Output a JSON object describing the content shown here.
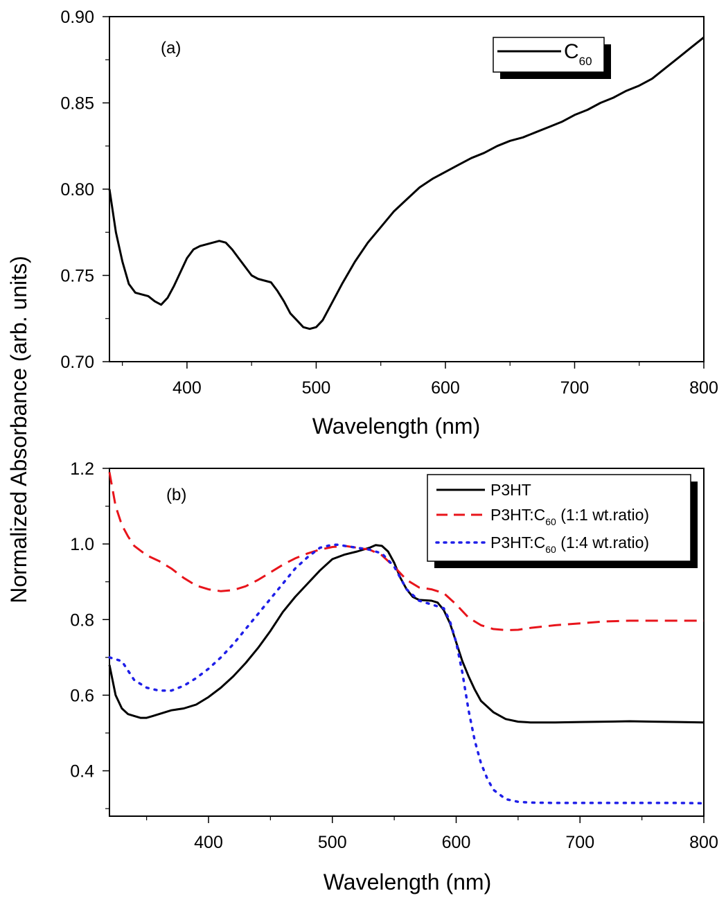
{
  "ylabel": "Normalized Absorbance (arb. units)",
  "colors": {
    "black": "#000000",
    "red": "#e8141b",
    "blue": "#1f1fe8"
  },
  "chart_data": [
    {
      "type": "line",
      "panel_label": "(a)",
      "xlabel": "Wavelength (nm)",
      "ylabel": "Normalized Absorbance (arb. units)",
      "xlim": [
        340,
        800
      ],
      "ylim": [
        0.7,
        0.9
      ],
      "xticks": [
        400,
        500,
        600,
        700,
        800
      ],
      "yticks": [
        0.7,
        0.75,
        0.8,
        0.85,
        0.9
      ],
      "xtick_labels": [
        "400",
        "500",
        "600",
        "700",
        "800"
      ],
      "ytick_labels": [
        "0.70",
        "0.75",
        "0.80",
        "0.85",
        "0.90"
      ],
      "legend": {
        "position": "top-right",
        "entries": [
          {
            "main": "C",
            "sub": "60"
          }
        ]
      },
      "series": [
        {
          "name": "C60",
          "color": "#000000",
          "dash": "solid",
          "x": [
            340,
            345,
            350,
            355,
            360,
            365,
            370,
            375,
            380,
            385,
            390,
            395,
            400,
            405,
            410,
            415,
            420,
            425,
            430,
            435,
            440,
            445,
            450,
            455,
            460,
            465,
            470,
            475,
            480,
            485,
            490,
            495,
            500,
            505,
            510,
            520,
            530,
            540,
            550,
            560,
            570,
            580,
            590,
            600,
            610,
            620,
            630,
            640,
            650,
            660,
            670,
            680,
            690,
            700,
            710,
            720,
            730,
            740,
            750,
            760,
            770,
            780,
            790,
            800
          ],
          "y": [
            0.8,
            0.775,
            0.758,
            0.745,
            0.74,
            0.739,
            0.738,
            0.735,
            0.733,
            0.737,
            0.744,
            0.752,
            0.76,
            0.765,
            0.767,
            0.768,
            0.769,
            0.77,
            0.769,
            0.765,
            0.76,
            0.755,
            0.75,
            0.748,
            0.747,
            0.746,
            0.741,
            0.735,
            0.728,
            0.724,
            0.72,
            0.719,
            0.72,
            0.724,
            0.731,
            0.745,
            0.758,
            0.769,
            0.778,
            0.787,
            0.794,
            0.801,
            0.806,
            0.81,
            0.814,
            0.818,
            0.821,
            0.825,
            0.828,
            0.83,
            0.833,
            0.836,
            0.839,
            0.843,
            0.846,
            0.85,
            0.853,
            0.857,
            0.86,
            0.864,
            0.87,
            0.876,
            0.882,
            0.888
          ]
        }
      ]
    },
    {
      "type": "line",
      "panel_label": "(b)",
      "xlabel": "Wavelength (nm)",
      "ylabel": "Normalized Absorbance (arb. units)",
      "xlim": [
        320,
        800
      ],
      "ylim": [
        0.28,
        1.2
      ],
      "xticks": [
        400,
        500,
        600,
        700,
        800
      ],
      "yticks": [
        0.4,
        0.6,
        0.8,
        1.0,
        1.2
      ],
      "xtick_labels": [
        "400",
        "500",
        "600",
        "700",
        "800"
      ],
      "ytick_labels": [
        "0.4",
        "0.6",
        "0.8",
        "1.0",
        "1.2"
      ],
      "legend": {
        "position": "top-right",
        "entries": [
          {
            "main": "P3HT",
            "sub": "",
            "tail": ""
          },
          {
            "main": "P3HT:C",
            "sub": "60",
            "tail": " (1:1 wt.ratio)"
          },
          {
            "main": "P3HT:C",
            "sub": "60",
            "tail": " (1:4 wt.ratio)"
          }
        ]
      },
      "series": [
        {
          "name": "P3HT",
          "color": "#000000",
          "dash": "solid",
          "x": [
            320,
            325,
            330,
            335,
            340,
            345,
            350,
            355,
            360,
            365,
            370,
            380,
            390,
            400,
            410,
            420,
            430,
            440,
            450,
            460,
            470,
            480,
            490,
            500,
            510,
            520,
            530,
            535,
            540,
            545,
            550,
            555,
            560,
            565,
            570,
            580,
            585,
            590,
            595,
            600,
            605,
            610,
            615,
            620,
            630,
            640,
            650,
            660,
            670,
            680,
            700,
            720,
            740,
            760,
            780,
            800
          ],
          "y": [
            0.68,
            0.6,
            0.565,
            0.55,
            0.545,
            0.54,
            0.54,
            0.545,
            0.55,
            0.555,
            0.56,
            0.565,
            0.575,
            0.595,
            0.62,
            0.65,
            0.685,
            0.725,
            0.77,
            0.82,
            0.86,
            0.895,
            0.93,
            0.96,
            0.972,
            0.98,
            0.99,
            0.997,
            0.995,
            0.98,
            0.95,
            0.91,
            0.88,
            0.86,
            0.852,
            0.85,
            0.845,
            0.825,
            0.79,
            0.74,
            0.69,
            0.65,
            0.615,
            0.585,
            0.555,
            0.537,
            0.53,
            0.528,
            0.528,
            0.528,
            0.529,
            0.53,
            0.531,
            0.53,
            0.529,
            0.528
          ]
        },
        {
          "name": "P3HT:C60 (1:1 wt.ratio)",
          "color": "#e8141b",
          "dash": "long-dash",
          "x": [
            320,
            325,
            330,
            335,
            340,
            350,
            360,
            370,
            380,
            390,
            400,
            410,
            420,
            430,
            440,
            450,
            460,
            470,
            480,
            490,
            500,
            510,
            520,
            530,
            540,
            550,
            560,
            570,
            580,
            590,
            600,
            610,
            620,
            630,
            640,
            650,
            660,
            680,
            700,
            720,
            740,
            760,
            780,
            800
          ],
          "y": [
            1.19,
            1.1,
            1.05,
            1.02,
            0.995,
            0.97,
            0.955,
            0.935,
            0.91,
            0.89,
            0.88,
            0.875,
            0.878,
            0.888,
            0.905,
            0.925,
            0.945,
            0.962,
            0.975,
            0.985,
            0.992,
            0.995,
            0.99,
            0.985,
            0.97,
            0.94,
            0.905,
            0.885,
            0.88,
            0.87,
            0.84,
            0.805,
            0.785,
            0.775,
            0.772,
            0.773,
            0.778,
            0.785,
            0.79,
            0.795,
            0.797,
            0.797,
            0.797,
            0.797
          ]
        },
        {
          "name": "P3HT:C60 (1:4 wt.ratio)",
          "color": "#1f1fe8",
          "dash": "dotted",
          "x": [
            320,
            330,
            340,
            350,
            360,
            370,
            380,
            390,
            400,
            410,
            420,
            430,
            440,
            450,
            460,
            470,
            480,
            490,
            500,
            505,
            510,
            520,
            530,
            540,
            550,
            560,
            570,
            580,
            590,
            595,
            600,
            605,
            610,
            615,
            620,
            625,
            630,
            640,
            650,
            660,
            680,
            700,
            720,
            740,
            760,
            780,
            800
          ],
          "y": [
            0.7,
            0.69,
            0.64,
            0.62,
            0.612,
            0.612,
            0.625,
            0.645,
            0.67,
            0.7,
            0.735,
            0.775,
            0.815,
            0.855,
            0.895,
            0.935,
            0.965,
            0.99,
            0.998,
            0.998,
            0.995,
            0.99,
            0.985,
            0.975,
            0.94,
            0.88,
            0.85,
            0.84,
            0.83,
            0.795,
            0.74,
            0.66,
            0.56,
            0.48,
            0.42,
            0.38,
            0.35,
            0.325,
            0.318,
            0.316,
            0.315,
            0.315,
            0.315,
            0.315,
            0.315,
            0.315,
            0.314
          ]
        }
      ]
    }
  ]
}
